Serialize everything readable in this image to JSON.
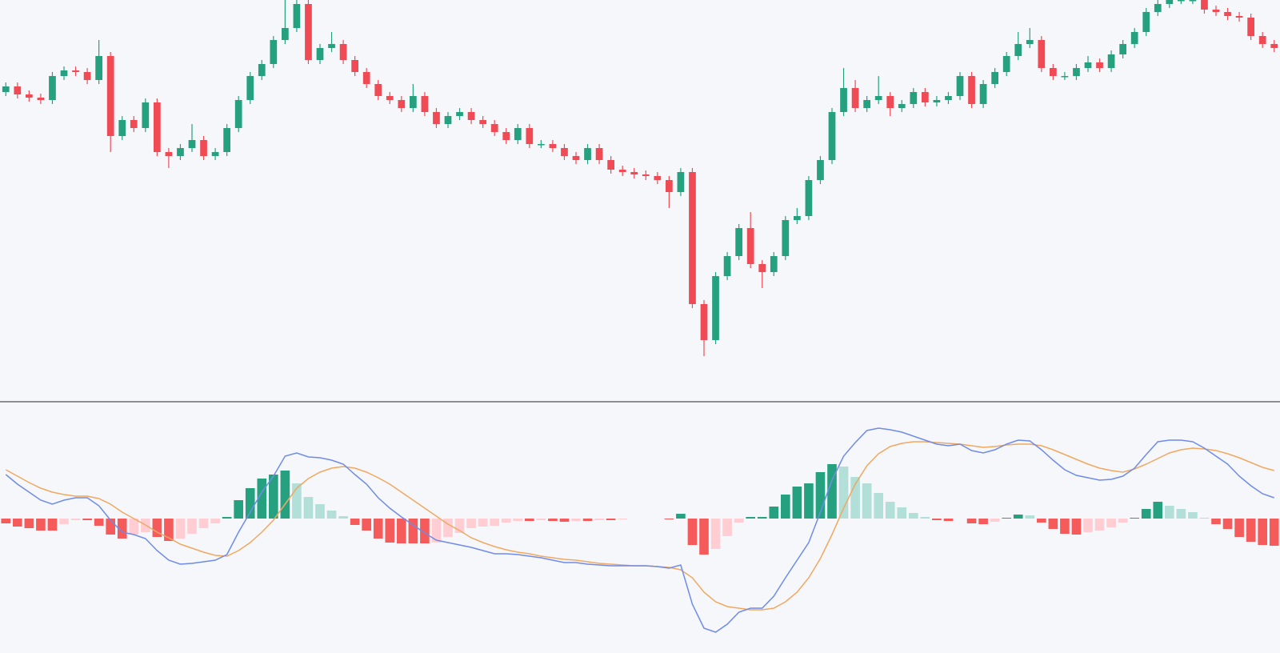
{
  "chart_data": [
    {
      "type": "candlestick",
      "ylim": [
        0,
        500
      ],
      "up_color": "#26a17f",
      "down_color": "#f04a55",
      "open": [
        385,
        392,
        382,
        378,
        375,
        405,
        412,
        410,
        400,
        430,
        330,
        350,
        340,
        372,
        310,
        305,
        315,
        325,
        305,
        310,
        340,
        375,
        405,
        420,
        450,
        465,
        495,
        425,
        440,
        445,
        425,
        410,
        395,
        380,
        375,
        365,
        380,
        360,
        345,
        355,
        360,
        350,
        345,
        335,
        325,
        340,
        320,
        320,
        315,
        305,
        300,
        315,
        300,
        288,
        285,
        282,
        280,
        275,
        260,
        285,
        120,
        75,
        155,
        180,
        215,
        170,
        160,
        180,
        225,
        230,
        275,
        300,
        360,
        390,
        365,
        375,
        380,
        365,
        370,
        385,
        372,
        375,
        380,
        405,
        370,
        395,
        410,
        430,
        445,
        450,
        415,
        405,
        405,
        415,
        422,
        415,
        432,
        445,
        460,
        485,
        495,
        500,
        500,
        500,
        488,
        485,
        480,
        478,
        455,
        445
      ],
      "high": [
        397,
        397,
        387,
        383,
        410,
        417,
        417,
        415,
        450,
        435,
        355,
        355,
        377,
        377,
        315,
        320,
        345,
        330,
        315,
        345,
        380,
        410,
        425,
        455,
        500,
        510,
        505,
        445,
        460,
        450,
        430,
        415,
        400,
        385,
        380,
        395,
        385,
        365,
        360,
        365,
        365,
        355,
        350,
        340,
        345,
        345,
        325,
        325,
        320,
        310,
        320,
        320,
        305,
        293,
        290,
        287,
        285,
        280,
        290,
        290,
        125,
        160,
        185,
        220,
        235,
        175,
        185,
        230,
        240,
        280,
        305,
        365,
        415,
        400,
        380,
        405,
        385,
        375,
        390,
        390,
        380,
        385,
        410,
        410,
        400,
        415,
        435,
        460,
        465,
        455,
        420,
        410,
        420,
        430,
        427,
        437,
        450,
        465,
        490,
        500,
        505,
        505,
        505,
        505,
        493,
        490,
        485,
        483,
        460,
        450
      ],
      "low": [
        380,
        377,
        373,
        370,
        370,
        400,
        405,
        395,
        395,
        310,
        325,
        335,
        335,
        305,
        290,
        300,
        310,
        300,
        300,
        305,
        335,
        370,
        400,
        415,
        445,
        460,
        420,
        420,
        435,
        420,
        405,
        390,
        375,
        370,
        360,
        360,
        355,
        340,
        340,
        350,
        345,
        340,
        330,
        320,
        320,
        315,
        315,
        310,
        300,
        295,
        295,
        295,
        283,
        280,
        277,
        275,
        270,
        240,
        255,
        115,
        55,
        70,
        150,
        175,
        165,
        140,
        155,
        175,
        220,
        225,
        270,
        295,
        355,
        360,
        360,
        370,
        355,
        360,
        365,
        367,
        367,
        370,
        375,
        365,
        365,
        390,
        405,
        425,
        440,
        410,
        400,
        400,
        400,
        410,
        410,
        410,
        427,
        440,
        455,
        480,
        490,
        495,
        495,
        483,
        480,
        475,
        473,
        450,
        440,
        435
      ],
      "close": [
        392,
        382,
        378,
        375,
        405,
        412,
        410,
        400,
        430,
        330,
        350,
        340,
        372,
        310,
        305,
        315,
        325,
        305,
        310,
        340,
        375,
        405,
        420,
        450,
        465,
        495,
        425,
        440,
        445,
        425,
        410,
        395,
        380,
        375,
        365,
        380,
        360,
        345,
        355,
        360,
        350,
        345,
        335,
        325,
        340,
        320,
        320,
        315,
        305,
        300,
        315,
        300,
        288,
        285,
        282,
        280,
        275,
        260,
        285,
        120,
        75,
        155,
        180,
        215,
        170,
        160,
        180,
        225,
        230,
        275,
        300,
        360,
        390,
        365,
        375,
        380,
        365,
        370,
        385,
        372,
        375,
        380,
        405,
        370,
        395,
        410,
        430,
        445,
        450,
        415,
        405,
        405,
        415,
        422,
        415,
        432,
        445,
        460,
        485,
        495,
        500,
        500,
        500,
        488,
        485,
        480,
        478,
        455,
        445,
        440
      ]
    },
    {
      "type": "macd",
      "ylim": [
        -152,
        145
      ],
      "macd_color": "#6f8be8",
      "signal_color": "#f0a860",
      "hist_colors": [
        "#26a17f",
        "#b2dfd8",
        "#f55b5b",
        "#ffcdd2"
      ],
      "macd": [
        55,
        43,
        33,
        23,
        18,
        23,
        26,
        26,
        16,
        -2,
        -17,
        -20,
        -25,
        -40,
        -52,
        -57,
        -56,
        -54,
        -52,
        -45,
        -17,
        8,
        33,
        53,
        78,
        82,
        77,
        76,
        73,
        68,
        55,
        43,
        26,
        13,
        2,
        -8,
        -18,
        -27,
        -30,
        -33,
        -36,
        -40,
        -44,
        -44,
        -45,
        -47,
        -49,
        -52,
        -55,
        -55,
        -57,
        -58,
        -59,
        -59,
        -59,
        -59,
        -60,
        -62,
        -58,
        -107,
        -137,
        -142,
        -132,
        -117,
        -112,
        -112,
        -97,
        -74,
        -52,
        -30,
        8,
        48,
        78,
        95,
        110,
        113,
        111,
        108,
        103,
        98,
        93,
        91,
        93,
        85,
        82,
        86,
        93,
        98,
        97,
        86,
        73,
        61,
        54,
        51,
        48,
        49,
        53,
        63,
        80,
        96,
        98,
        98,
        96,
        88,
        78,
        68,
        53,
        41,
        31,
        26
      ],
      "signal": [
        61,
        53,
        45,
        38,
        33,
        30,
        28,
        28,
        25,
        18,
        8,
        0,
        -8,
        -17,
        -24,
        -32,
        -37,
        -42,
        -46,
        -47,
        -40,
        -30,
        -17,
        -2,
        18,
        38,
        50,
        58,
        63,
        65,
        63,
        58,
        51,
        43,
        33,
        23,
        13,
        3,
        -7,
        -15,
        -24,
        -30,
        -35,
        -39,
        -42,
        -44,
        -47,
        -49,
        -51,
        -52,
        -54,
        -56,
        -57,
        -58,
        -59,
        -59,
        -60,
        -61,
        -64,
        -74,
        -92,
        -104,
        -110,
        -112,
        -114,
        -114,
        -112,
        -104,
        -92,
        -74,
        -50,
        -20,
        13,
        43,
        66,
        81,
        90,
        94,
        96,
        96,
        95,
        94,
        93,
        91,
        89,
        90,
        92,
        93,
        93,
        91,
        86,
        80,
        74,
        68,
        63,
        60,
        58,
        62,
        68,
        75,
        82,
        86,
        88,
        87,
        85,
        81,
        76,
        70,
        64,
        60
      ],
      "histogram": [
        -6,
        -10,
        -12,
        -15,
        -15,
        -7,
        -2,
        -2,
        -9,
        -20,
        -25,
        -20,
        -17,
        -23,
        -28,
        -25,
        -19,
        -12,
        -6,
        2,
        23,
        38,
        50,
        55,
        60,
        44,
        27,
        18,
        10,
        3,
        -8,
        -15,
        -25,
        -30,
        -31,
        -31,
        -31,
        -30,
        -23,
        -18,
        -12,
        -10,
        -9,
        -5,
        -3,
        -3,
        -2,
        -3,
        -4,
        -3,
        -3,
        -2,
        -2,
        -1,
        0,
        0,
        0,
        -1,
        6,
        -33,
        -45,
        -38,
        -22,
        -5,
        2,
        2,
        15,
        30,
        40,
        44,
        58,
        68,
        65,
        52,
        44,
        32,
        21,
        14,
        7,
        2,
        -2,
        -3,
        0,
        -6,
        -7,
        -4,
        1,
        5,
        4,
        -5,
        -13,
        -19,
        -20,
        -17,
        -15,
        -11,
        -5,
        1,
        12,
        21,
        16,
        12,
        8,
        1,
        -7,
        -13,
        -23,
        -29,
        -33,
        -34
      ]
    }
  ]
}
